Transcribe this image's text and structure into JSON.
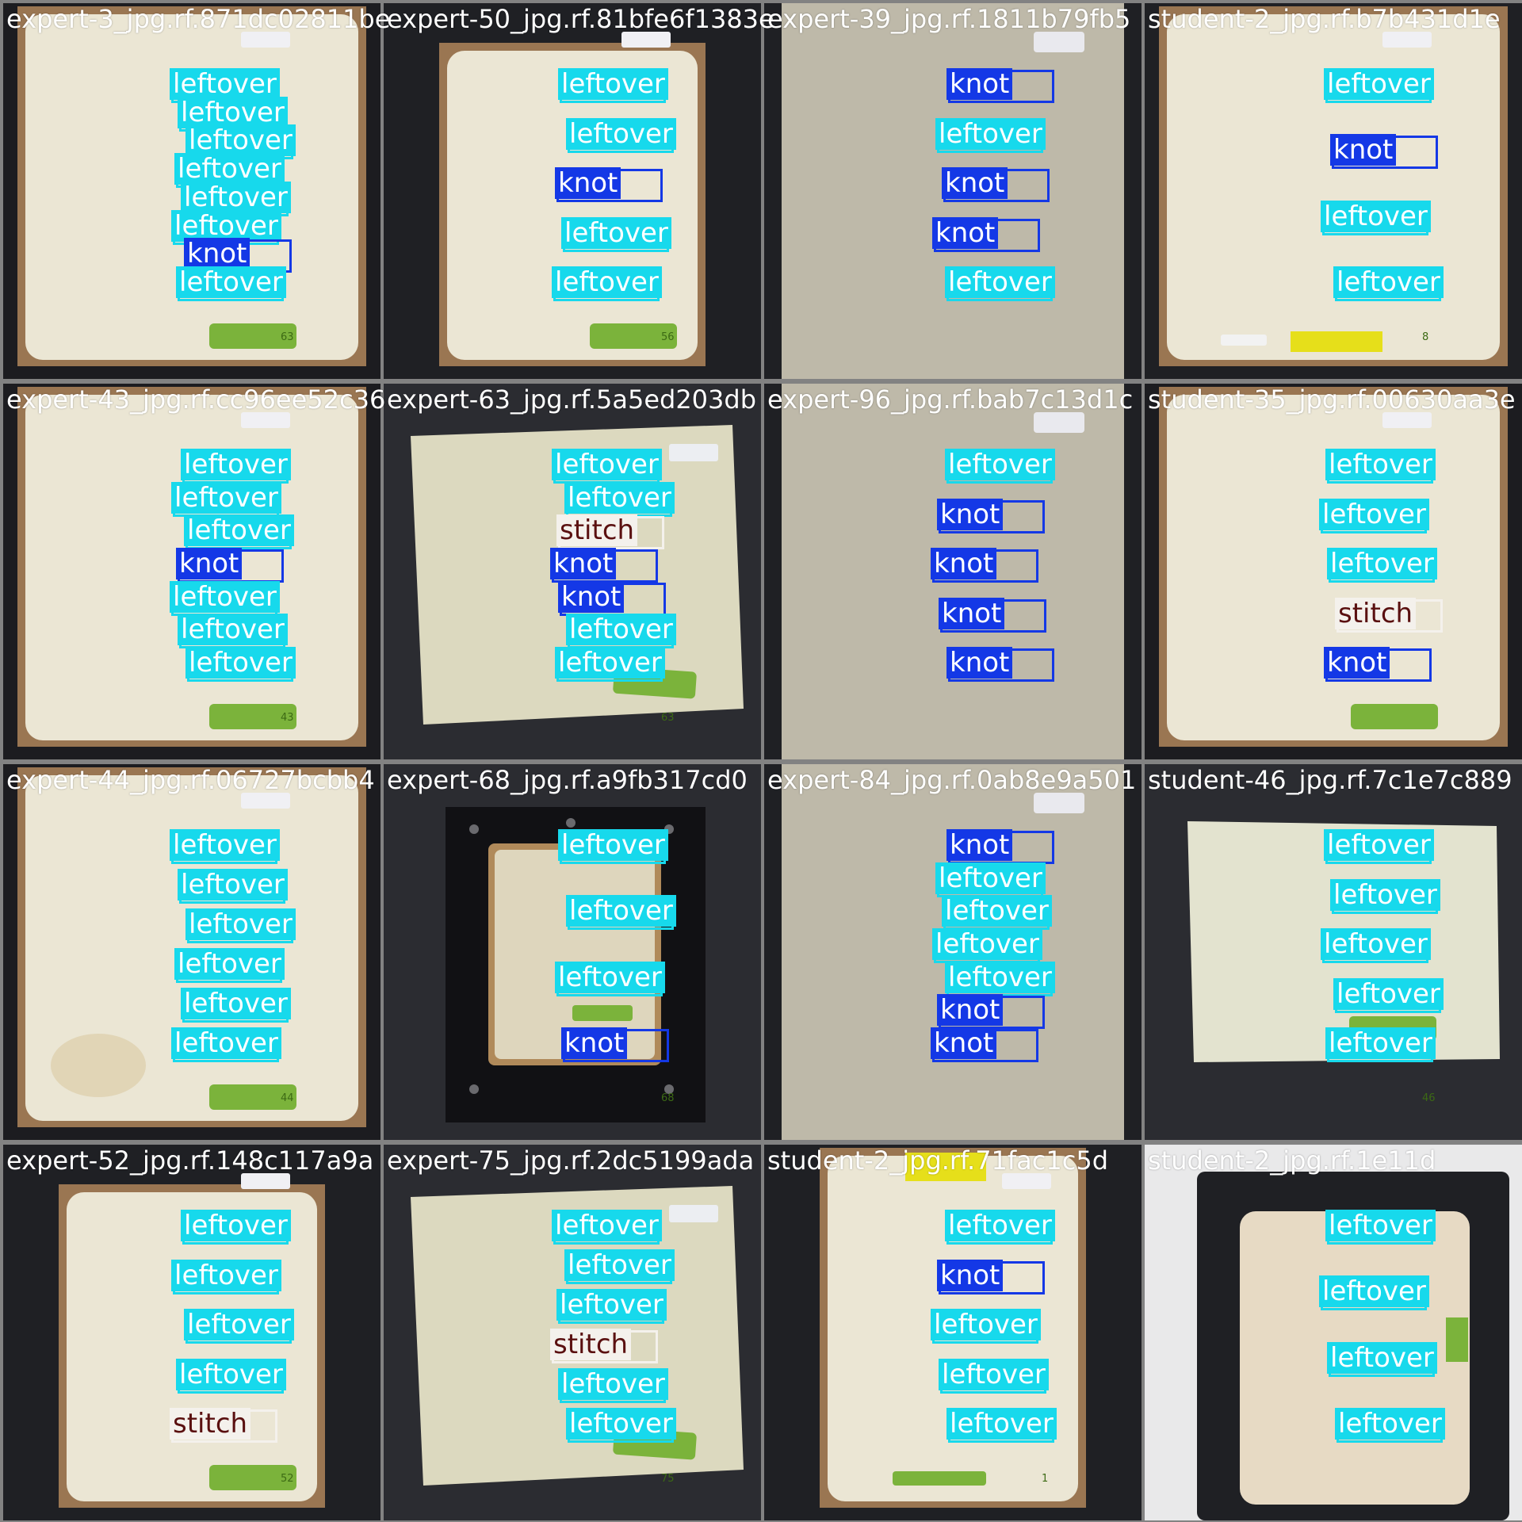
{
  "classes": {
    "leftover": {
      "label": "leftover",
      "color": "#17d9ec"
    },
    "knot": {
      "label": "knot",
      "color": "#1438e6"
    },
    "stitch": {
      "label": "stitch",
      "color": "#f4f1ec"
    }
  },
  "tiles": [
    {
      "title": "expert-3_jpg.rf.871dc02811be",
      "scene": "foam-in-frame",
      "tag": "63",
      "detections": [
        "leftover",
        "leftover",
        "leftover",
        "leftover",
        "leftover",
        "leftover",
        "knot",
        "leftover"
      ]
    },
    {
      "title": "expert-50_jpg.rf.81bfe6f1383e",
      "scene": "foam-in-dark-frame",
      "tag": "56",
      "detections": [
        "leftover",
        "leftover",
        "knot",
        "leftover",
        "leftover"
      ]
    },
    {
      "title": "expert-39_jpg.rf.1811b79fb5",
      "scene": "felt-sheet",
      "tag": "",
      "detections": [
        "knot",
        "leftover",
        "knot",
        "knot",
        "leftover"
      ]
    },
    {
      "title": "student-2_jpg.rf.b7b431d1e",
      "scene": "foam-in-dark-frame-yellow",
      "tag": "8",
      "detections": [
        "leftover",
        "knot",
        "leftover",
        "leftover"
      ]
    },
    {
      "title": "expert-43_jpg.rf.cc96ee52c36",
      "scene": "foam-in-frame",
      "tag": "43",
      "detections": [
        "leftover",
        "leftover",
        "leftover",
        "knot",
        "leftover",
        "leftover",
        "leftover"
      ]
    },
    {
      "title": "expert-63_jpg.rf.5a5ed203db",
      "scene": "sponge-loose",
      "tag": "63",
      "detections": [
        "leftover",
        "leftover",
        "stitch",
        "knot",
        "knot",
        "leftover",
        "leftover"
      ]
    },
    {
      "title": "expert-96_jpg.rf.bab7c13d1c",
      "scene": "felt-sheet",
      "tag": "",
      "detections": [
        "leftover",
        "knot",
        "knot",
        "knot",
        "knot"
      ]
    },
    {
      "title": "student-35_jpg.rf.00630aa3e",
      "scene": "foam-in-frame",
      "tag": "",
      "detections": [
        "leftover",
        "leftover",
        "leftover",
        "stitch",
        "knot"
      ]
    },
    {
      "title": "expert-44_jpg.rf.06727bcbb4",
      "scene": "foam-in-frame-stain",
      "tag": "44",
      "detections": [
        "leftover",
        "leftover",
        "leftover",
        "leftover",
        "leftover",
        "leftover"
      ]
    },
    {
      "title": "expert-68_jpg.rf.a9fb317cd0",
      "scene": "foam-in-screw-frame",
      "tag": "68",
      "detections": [
        "leftover",
        "leftover",
        "leftover",
        "knot"
      ]
    },
    {
      "title": "expert-84_jpg.rf.0ab8e9a501",
      "scene": "felt-sheet",
      "tag": "",
      "detections": [
        "knot",
        "leftover",
        "leftover",
        "leftover",
        "leftover",
        "knot",
        "knot"
      ]
    },
    {
      "title": "student-46_jpg.rf.7c1e7c889",
      "scene": "foam-loose",
      "tag": "46",
      "detections": [
        "leftover",
        "leftover",
        "leftover",
        "leftover",
        "leftover"
      ]
    },
    {
      "title": "expert-52_jpg.rf.148c117a9a",
      "scene": "foam-in-dark-frame",
      "tag": "52",
      "detections": [
        "leftover",
        "leftover",
        "leftover",
        "leftover",
        "stitch"
      ]
    },
    {
      "title": "expert-75_jpg.rf.2dc5199ada",
      "scene": "sponge-loose",
      "tag": "75",
      "detections": [
        "leftover",
        "leftover",
        "leftover",
        "stitch",
        "leftover",
        "leftover"
      ]
    },
    {
      "title": "student-2_jpg.rf.71fac1c5d",
      "scene": "foam-in-dark-frame-top",
      "tag": "1",
      "detections": [
        "leftover",
        "knot",
        "leftover",
        "leftover",
        "leftover"
      ]
    },
    {
      "title": "student-2_jpg.rf.1e11d",
      "scene": "foam-in-black-plate",
      "tag": "",
      "detections": [
        "leftover",
        "leftover",
        "leftover",
        "leftover"
      ]
    }
  ]
}
